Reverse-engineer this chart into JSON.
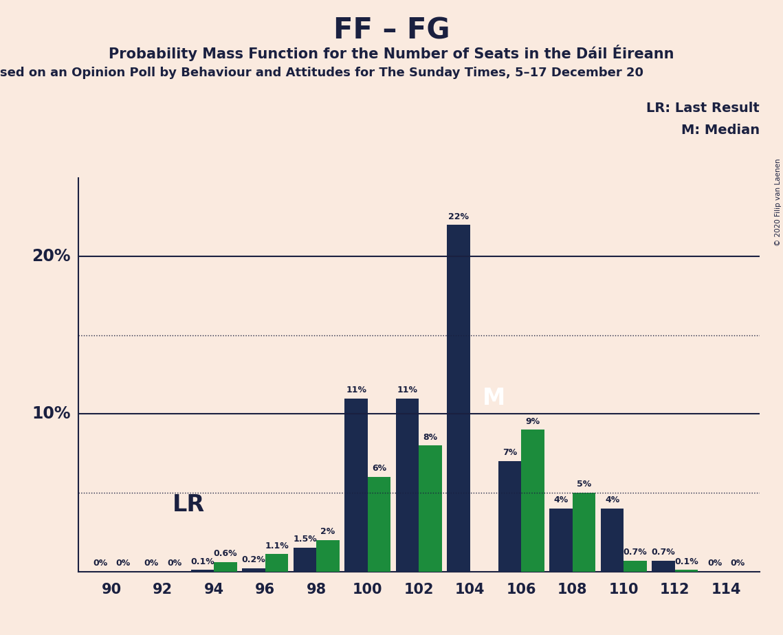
{
  "title": "FF – FG",
  "subtitle": "Probability Mass Function for the Number of Seats in the Dáil Éireann",
  "subtitle2": "sed on an Opinion Poll by Behaviour and Attitudes for The Sunday Times, 5–17 December 20",
  "copyright": "© 2020 Filip van Laenen",
  "background_color": "#faeadf",
  "bar_color_dark": "#1b2a4e",
  "bar_color_green": "#1c8c3c",
  "seats": [
    90,
    92,
    94,
    96,
    98,
    100,
    102,
    104,
    106,
    108,
    110,
    112,
    114
  ],
  "dark_values": [
    0.0,
    0.0,
    0.1,
    0.2,
    1.5,
    11.0,
    11.0,
    22.0,
    7.0,
    4.0,
    4.0,
    0.7,
    0.0
  ],
  "green_values": [
    0.0,
    0.0,
    0.6,
    1.1,
    2.0,
    6.0,
    8.0,
    0.0,
    9.0,
    5.0,
    0.7,
    0.1,
    0.0
  ],
  "dark_labels": [
    "0%",
    "0%",
    "0.1%",
    "0.2%",
    "1.5%",
    "11%",
    "11%",
    "22%",
    "7%",
    "4%",
    "4%",
    "0.7%",
    "0%"
  ],
  "green_labels": [
    "0%",
    "0%",
    "0.6%",
    "1.1%",
    "2%",
    "6%",
    "8%",
    "",
    "9%",
    "5%",
    "0.7%",
    "0.1%",
    "0%"
  ],
  "lr_seat": 94,
  "median_seat": 104,
  "ylim": [
    0,
    25
  ],
  "dotted_lines": [
    5.0,
    15.0
  ],
  "solid_lines": [
    10.0,
    20.0
  ],
  "bar_width": 0.9,
  "title_fontsize": 30,
  "subtitle_fontsize": 15,
  "subtitle2_fontsize": 13,
  "legend_text1": "LR: Last Result",
  "legend_text2": "M: Median",
  "lr_label": "LR",
  "median_label": "M",
  "label_fontsize": 9,
  "ytick_positions": [
    10.0,
    20.0
  ],
  "ytick_labels": [
    "10%",
    "20%"
  ]
}
